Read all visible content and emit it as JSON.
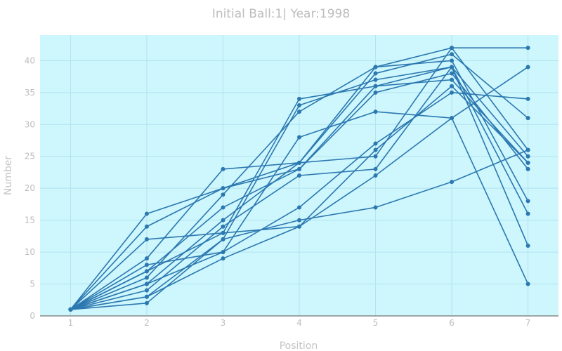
{
  "chart_data": {
    "type": "line",
    "title": "Initial Ball:1| Year:1998",
    "xlabel": "Position",
    "ylabel": "Number",
    "x": [
      1,
      2,
      3,
      4,
      5,
      6,
      7
    ],
    "xlim": [
      0.6,
      7.4
    ],
    "ylim": [
      0,
      44
    ],
    "yticks": [
      0,
      5,
      10,
      15,
      20,
      25,
      30,
      35,
      40
    ],
    "grid": true,
    "legend": "none",
    "colors": {
      "line": "#2c78b0",
      "plot_bg": "#cdf6fd",
      "grid": "#b3e3ee",
      "axis": "#888888"
    },
    "series": [
      {
        "values": [
          1,
          16,
          20,
          24,
          25,
          42,
          26
        ]
      },
      {
        "values": [
          1,
          14,
          20,
          23,
          35,
          38,
          23
        ]
      },
      {
        "values": [
          1,
          12,
          13,
          34,
          36,
          37,
          24
        ]
      },
      {
        "values": [
          1,
          9,
          23,
          24,
          39,
          40,
          18
        ]
      },
      {
        "values": [
          1,
          8,
          10,
          28,
          32,
          31,
          5
        ]
      },
      {
        "values": [
          1,
          7,
          17,
          23,
          36,
          39,
          25
        ]
      },
      {
        "values": [
          1,
          6,
          19,
          32,
          39,
          42,
          42
        ]
      },
      {
        "values": [
          1,
          5,
          15,
          24,
          38,
          41,
          31
        ]
      },
      {
        "values": [
          1,
          4,
          14,
          22,
          23,
          39,
          16
        ]
      },
      {
        "values": [
          1,
          3,
          12,
          15,
          17,
          21,
          26
        ]
      },
      {
        "values": [
          1,
          2,
          12,
          33,
          37,
          39,
          11
        ]
      },
      {
        "values": [
          1,
          3,
          9,
          14,
          22,
          31,
          39
        ]
      },
      {
        "values": [
          1,
          5,
          10,
          17,
          27,
          35,
          34
        ]
      },
      {
        "values": [
          1,
          7,
          13,
          14,
          26,
          36,
          24
        ]
      }
    ]
  }
}
